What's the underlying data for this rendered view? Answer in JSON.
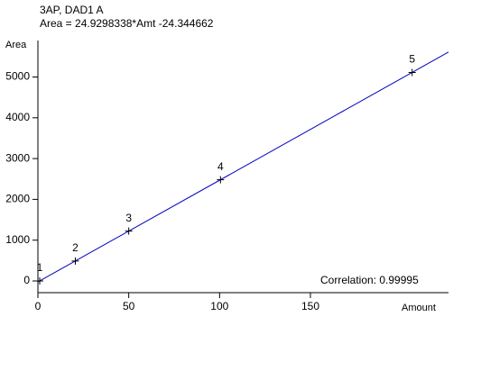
{
  "chart_data": {
    "type": "calibration",
    "title": "3AP, DAD1 A",
    "subtitle": "Area = 24.9298338*Amt -24.344662",
    "x_label": "Amount",
    "y_label": "Area",
    "annotation": "Correlation: 0.99995",
    "xlim": [
      0,
      226
    ],
    "ylim": [
      -287,
      5894
    ],
    "xticks": [
      0,
      50,
      100,
      150
    ],
    "yticks": [
      0,
      1000,
      2000,
      3000,
      4000,
      5000
    ],
    "point_labels": [
      "1",
      "2",
      "3",
      "4",
      "5"
    ],
    "x": [
      1,
      20.6,
      50,
      100.5,
      206
    ],
    "values": [
      0.6,
      489,
      1222,
      2481,
      5111
    ],
    "point_color": "#000000",
    "fit": {
      "x": [
        0,
        226
      ],
      "values": [
        -24.3,
        5610
      ],
      "color": "#0000c0"
    },
    "title_color": "#1a1aff"
  }
}
